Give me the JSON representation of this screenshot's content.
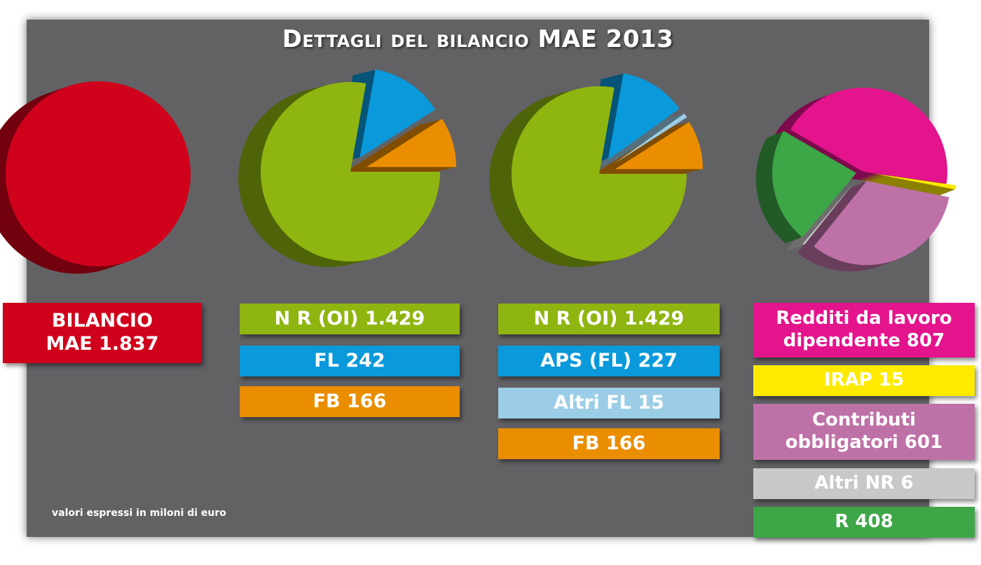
{
  "title": "Dettagli del bilancio MAE 2013",
  "note": "valori espressi in miloni di euro",
  "colors": {
    "red": "#d0011b",
    "green": "#8fb511",
    "blue": "#0a99da",
    "orange": "#ea8e00",
    "lightblue": "#9bcde6",
    "magenta": "#e3148c",
    "yellow": "#fcea00",
    "mauve": "#be71a7",
    "gray": "#c8c8c8",
    "darkgreen": "#3da647"
  },
  "labels": {
    "bilancio": "BILANCIO\nMAE 1.837",
    "c2": [
      "N R (OI) 1.429",
      "FL 242",
      "FB 166"
    ],
    "c3": [
      "N R (OI) 1.429",
      "APS (FL) 227",
      "Altri FL 15",
      "FB 166"
    ],
    "c4": [
      "Redditi da lavoro\ndipendente 807",
      "IRAP 15",
      "Contributi\nobbligatori 601",
      "Altri NR 6",
      "R 408"
    ]
  },
  "chart_data": [
    {
      "type": "pie",
      "title": "BILANCIO MAE 1.837",
      "categories": [
        "BILANCIO MAE"
      ],
      "values": [
        1837
      ]
    },
    {
      "type": "pie",
      "categories": [
        "N R (OI)",
        "FL",
        "FB"
      ],
      "values": [
        1429,
        242,
        166
      ]
    },
    {
      "type": "pie",
      "categories": [
        "N R (OI)",
        "APS (FL)",
        "Altri FL",
        "FB"
      ],
      "values": [
        1429,
        227,
        15,
        166
      ]
    },
    {
      "type": "pie",
      "categories": [
        "Redditi da lavoro dipendente",
        "IRAP",
        "Contributi obbligatori",
        "Altri NR",
        "R"
      ],
      "values": [
        807,
        15,
        601,
        6,
        408
      ]
    }
  ]
}
